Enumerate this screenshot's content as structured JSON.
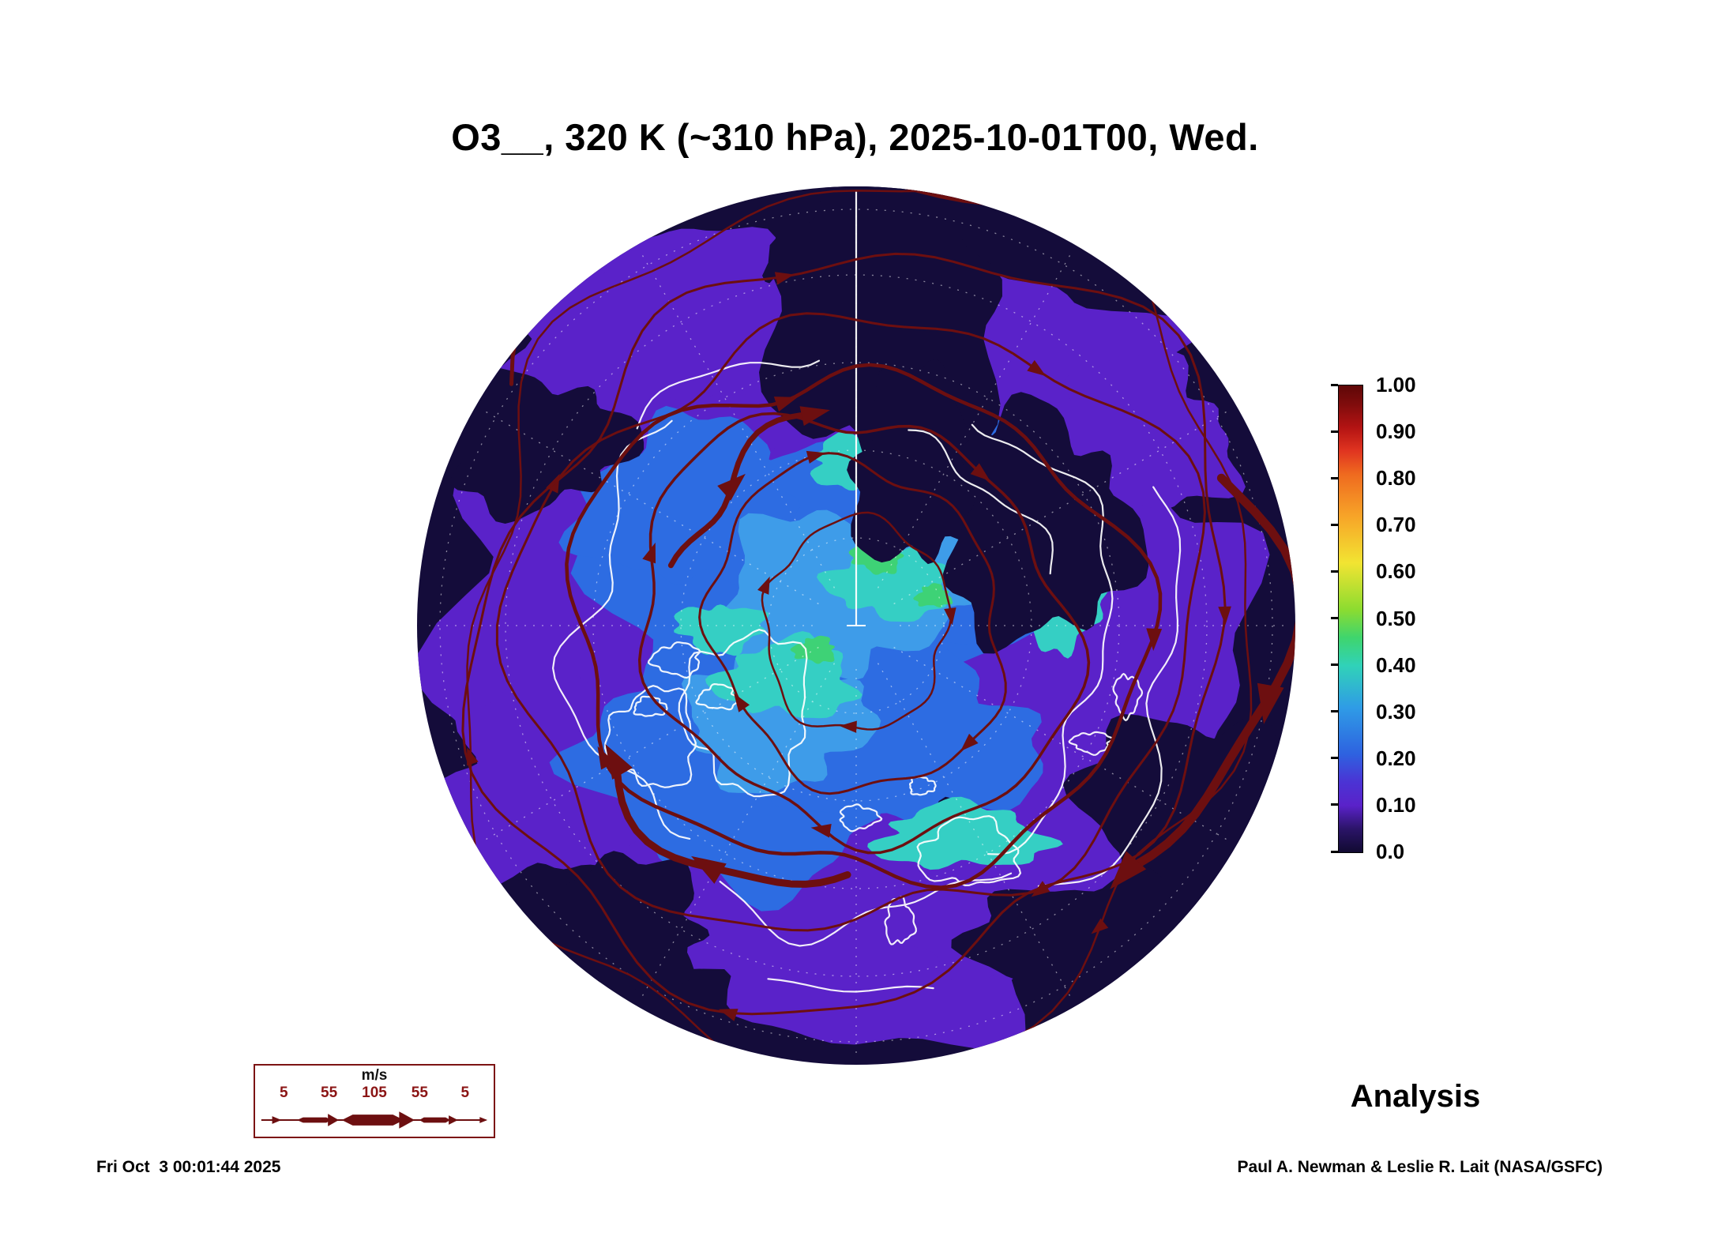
{
  "title": "O3__, 320 K (~310 hPa), 2025-10-01T00, Wed.",
  "colorbar": {
    "tick_labels": [
      "1.00",
      "0.90",
      "0.80",
      "0.70",
      "0.60",
      "0.50",
      "0.40",
      "0.30",
      "0.20",
      "0.10",
      "0.0"
    ],
    "stops": [
      [
        "0%",
        "#5e0707"
      ],
      [
        "4%",
        "#7f0c0c"
      ],
      [
        "9%",
        "#b31313"
      ],
      [
        "14%",
        "#e03420"
      ],
      [
        "19%",
        "#ef6a1f"
      ],
      [
        "28%",
        "#f7a428"
      ],
      [
        "38%",
        "#f2e432"
      ],
      [
        "48%",
        "#8cdc30"
      ],
      [
        "54%",
        "#3fd56d"
      ],
      [
        "60%",
        "#30d2b8"
      ],
      [
        "69%",
        "#2f9ce6"
      ],
      [
        "79%",
        "#2e62e0"
      ],
      [
        "85%",
        "#4b33d4"
      ],
      [
        "90%",
        "#5a22c9"
      ],
      [
        "95%",
        "#2b1468"
      ],
      [
        "100%",
        "#110a31"
      ]
    ]
  },
  "wind_legend": {
    "unit": "m/s",
    "values": [
      "5",
      "55",
      "105",
      "55",
      "5"
    ]
  },
  "footer": {
    "timestamp": "Fri Oct  3 00:01:44 2025",
    "mode": "Analysis",
    "credit": "Paul A. Newman & Leslie R. Lait (NASA/GSFC)"
  },
  "colors": {
    "map_base": "#140c3a",
    "purple": "#5a22c9",
    "blue": "#2d6ce2",
    "light_blue": "#3e9ce9",
    "cyan": "#35cfc4",
    "green": "#3ed276",
    "streamline": "#6d0f10",
    "coastline": "#ffffff",
    "legend_accent": "#8b1515"
  },
  "chart_data": {
    "type": "heatmap",
    "title": "O3__, 320 K (~310 hPa), 2025-10-01T00, Wed.",
    "field": "O3 (normalized, 0.0 - 1.00)",
    "level": "320 K (~310 hPa)",
    "valid_time": "2025-10-01T00, Wed.",
    "projection": "north polar hemispheric view with coastlines and dashed graticule",
    "colorbar_ticks": [
      1.0,
      0.9,
      0.8,
      0.7,
      0.6,
      0.5,
      0.4,
      0.3,
      0.2,
      0.1,
      0.0
    ],
    "colorbar_range": [
      0.0,
      1.0
    ],
    "overlay": "wind streamlines with arrowheads, line thickness scaled by speed",
    "wind_scale_ms": [
      5,
      55,
      105,
      55,
      5
    ],
    "mode": "Analysis",
    "generated": "Fri Oct  3 00:01:44 2025",
    "credit": "Paul A. Newman & Leslie R. Lait (NASA/GSFC)"
  }
}
